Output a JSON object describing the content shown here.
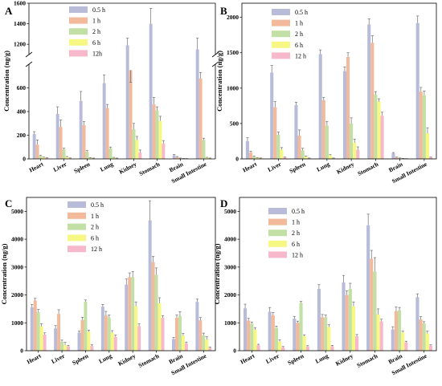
{
  "series_colors": [
    "#b8bcd9",
    "#f2b99b",
    "#c2e0a5",
    "#f7f783",
    "#f7b8cc"
  ],
  "error_color": "#707070",
  "chart_data": [
    {
      "panel": "A",
      "type": "bar",
      "broken_axis": true,
      "categories": [
        "Heart",
        "Liver",
        "Spleen",
        "Lung",
        "Kidney",
        "Stomach",
        "Brain",
        "Small Intestine"
      ],
      "ylabel": "Concentration (ng/g)",
      "ylim": [
        0,
        1600
      ],
      "lower_ticks": [
        "0",
        "200",
        "400",
        "600"
      ],
      "upper_ticks": [
        "1200",
        "1400",
        "1600"
      ],
      "series": [
        {
          "name": "0.5 h",
          "values": [
            210,
            380,
            490,
            640,
            1190,
            1400,
            30,
            1150
          ],
          "errors": [
            20,
            60,
            80,
            70,
            70,
            150,
            8,
            110
          ]
        },
        {
          "name": "1 h",
          "values": [
            120,
            270,
            285,
            430,
            750,
            460,
            15,
            680
          ],
          "errors": [
            40,
            60,
            30,
            30,
            80,
            60,
            5,
            50
          ]
        },
        {
          "name": "2 h",
          "values": [
            25,
            80,
            60,
            90,
            250,
            410,
            5,
            160
          ],
          "errors": [
            5,
            10,
            10,
            10,
            50,
            30,
            2,
            15
          ]
        },
        {
          "name": "6 h",
          "values": [
            12,
            15,
            8,
            10,
            160,
            320,
            3,
            10
          ],
          "errors": [
            3,
            5,
            3,
            3,
            30,
            40,
            1,
            3
          ]
        },
        {
          "name": "12h",
          "values": [
            8,
            6,
            5,
            5,
            55,
            130,
            2,
            5
          ],
          "errors": [
            2,
            2,
            2,
            2,
            20,
            25,
            1,
            2
          ]
        }
      ]
    },
    {
      "panel": "B",
      "type": "bar",
      "categories": [
        "Heart",
        "Liver",
        "Spleen",
        "Lung",
        "Kidney",
        "Stomach",
        "Brain",
        "Small Intestine"
      ],
      "ylabel": "Concentration (ng/g)",
      "ylim": [
        0,
        2200
      ],
      "yticks": [
        0,
        500,
        1000,
        1500,
        2000
      ],
      "series": [
        {
          "name": "0.5 h",
          "values": [
            250,
            1220,
            760,
            1480,
            1240,
            1900,
            80,
            1920
          ],
          "errors": [
            50,
            100,
            40,
            60,
            60,
            80,
            10,
            100
          ]
        },
        {
          "name": "1 h",
          "values": [
            90,
            730,
            330,
            830,
            1440,
            1640,
            20,
            950
          ],
          "errors": [
            20,
            80,
            80,
            40,
            60,
            100,
            5,
            60
          ]
        },
        {
          "name": "2 h",
          "values": [
            30,
            340,
            120,
            470,
            500,
            910,
            10,
            900
          ],
          "errors": [
            10,
            40,
            30,
            60,
            80,
            40,
            3,
            60
          ]
        },
        {
          "name": "6 h",
          "values": [
            15,
            130,
            30,
            50,
            230,
            810,
            5,
            360
          ],
          "errors": [
            5,
            30,
            10,
            10,
            50,
            40,
            2,
            80
          ]
        },
        {
          "name": "12 h",
          "values": [
            10,
            20,
            10,
            10,
            130,
            610,
            3,
            20
          ],
          "errors": [
            3,
            5,
            3,
            3,
            40,
            50,
            1,
            5
          ]
        }
      ]
    },
    {
      "panel": "C",
      "type": "bar",
      "categories": [
        "Heart",
        "Liver",
        "Spleen",
        "Lung",
        "Kidney",
        "Stomach",
        "Brain",
        "Small Intestine"
      ],
      "ylabel": "Concentration (ng/g)",
      "ylim": [
        0,
        5500
      ],
      "yticks": [
        0,
        1000,
        2000,
        3000,
        4000,
        5000
      ],
      "series": [
        {
          "name": "0.5 h",
          "values": [
            1560,
            800,
            650,
            1580,
            2370,
            4680,
            420,
            1750
          ],
          "errors": [
            100,
            100,
            50,
            80,
            200,
            700,
            60,
            100
          ]
        },
        {
          "name": "1 h",
          "values": [
            1800,
            1320,
            1100,
            1260,
            2640,
            3180,
            1180,
            1090
          ],
          "errors": [
            80,
            150,
            100,
            150,
            150,
            200,
            100,
            100
          ]
        },
        {
          "name": "2 h",
          "values": [
            1380,
            320,
            1760,
            1180,
            2640,
            2720,
            1250,
            550
          ],
          "errors": [
            100,
            60,
            60,
            100,
            200,
            250,
            150,
            80
          ]
        },
        {
          "name": "6 h",
          "values": [
            870,
            200,
            680,
            640,
            1600,
            1700,
            540,
            400
          ],
          "errors": [
            100,
            100,
            60,
            80,
            150,
            200,
            80,
            100
          ]
        },
        {
          "name": "12 h",
          "values": [
            580,
            150,
            170,
            500,
            880,
            1180,
            260,
            100
          ],
          "errors": [
            60,
            40,
            40,
            60,
            80,
            80,
            50,
            30
          ]
        }
      ]
    },
    {
      "panel": "D",
      "type": "bar",
      "categories": [
        "Heart",
        "Liver",
        "Spleen",
        "Lung",
        "Kidney",
        "Stomach",
        "Brain",
        "Small Intestine"
      ],
      "ylabel": "Concentration (ng/g)",
      "ylim": [
        0,
        5500
      ],
      "yticks": [
        0,
        1000,
        2000,
        3000,
        4000,
        5000
      ],
      "series": [
        {
          "name": "0.5 h",
          "values": [
            1520,
            1400,
            1150,
            2220,
            2450,
            4500,
            760,
            1920
          ],
          "errors": [
            150,
            150,
            80,
            150,
            250,
            400,
            100,
            120
          ]
        },
        {
          "name": "1 h",
          "values": [
            1080,
            1270,
            1000,
            1200,
            2000,
            3300,
            1420,
            1120
          ],
          "errors": [
            80,
            100,
            60,
            100,
            150,
            300,
            150,
            100
          ]
        },
        {
          "name": "2 h",
          "values": [
            970,
            820,
            1720,
            1200,
            2220,
            2840,
            1450,
            980
          ],
          "errors": [
            60,
            60,
            50,
            80,
            200,
            500,
            100,
            60
          ]
        },
        {
          "name": "6 h",
          "values": [
            750,
            330,
            520,
            850,
            1600,
            1300,
            650,
            620
          ],
          "errors": [
            80,
            60,
            50,
            80,
            150,
            200,
            50,
            80
          ]
        },
        {
          "name": "12 h",
          "values": [
            200,
            120,
            150,
            160,
            520,
            1050,
            300,
            180
          ],
          "errors": [
            30,
            30,
            30,
            30,
            60,
            80,
            40,
            30
          ]
        }
      ]
    }
  ]
}
